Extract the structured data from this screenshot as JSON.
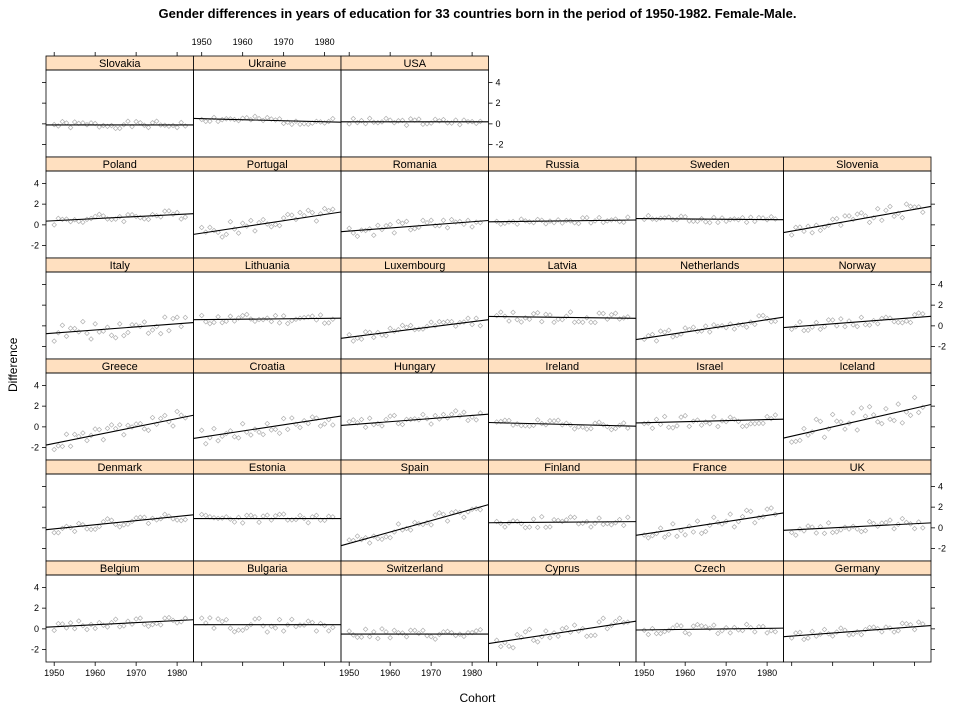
{
  "chart_data": {
    "type": "scatter",
    "title": "Gender differences in years of education for 33 countries born in the period of 1950-1982. Female-Male.",
    "xlabel": "Cohort",
    "ylabel": "Difference",
    "xlim": [
      1948,
      1984
    ],
    "ylim": [
      -3.2,
      5.2
    ],
    "x_ticks": [
      1950,
      1960,
      1970,
      1980
    ],
    "y_ticks": [
      -2,
      0,
      2,
      4
    ],
    "grid": false,
    "panel_strip_color": "#ffe0c0",
    "point_color": "#b0b0b0",
    "line_color": "#000000",
    "panels": [
      {
        "name": "Slovakia",
        "intercept": -0.1,
        "slope": 0.0,
        "spread": 0.35,
        "seed": 1
      },
      {
        "name": "Ukraine",
        "intercept": 0.5,
        "slope": -0.01,
        "spread": 0.35,
        "seed": 2
      },
      {
        "name": "USA",
        "intercept": 0.2,
        "slope": 0.0,
        "spread": 0.35,
        "seed": 3
      },
      {
        "name": "Poland",
        "intercept": 0.4,
        "slope": 0.02,
        "spread": 0.45,
        "seed": 4
      },
      {
        "name": "Portugal",
        "intercept": -0.8,
        "slope": 0.06,
        "spread": 0.7,
        "seed": 5
      },
      {
        "name": "Romania",
        "intercept": -0.6,
        "slope": 0.03,
        "spread": 0.6,
        "seed": 6
      },
      {
        "name": "Russia",
        "intercept": 0.3,
        "slope": 0.005,
        "spread": 0.3,
        "seed": 7
      },
      {
        "name": "Sweden",
        "intercept": 0.6,
        "slope": -0.003,
        "spread": 0.35,
        "seed": 8
      },
      {
        "name": "Slovenia",
        "intercept": -0.6,
        "slope": 0.07,
        "spread": 0.7,
        "seed": 9
      },
      {
        "name": "Italy",
        "intercept": -0.7,
        "slope": 0.03,
        "spread": 0.9,
        "seed": 10
      },
      {
        "name": "Lithuania",
        "intercept": 0.6,
        "slope": 0.004,
        "spread": 0.5,
        "seed": 11
      },
      {
        "name": "Luxembourg",
        "intercept": -1.1,
        "slope": 0.05,
        "spread": 0.5,
        "seed": 12
      },
      {
        "name": "Latvia",
        "intercept": 0.9,
        "slope": -0.005,
        "spread": 0.55,
        "seed": 13
      },
      {
        "name": "Netherlands",
        "intercept": -1.2,
        "slope": 0.06,
        "spread": 0.5,
        "seed": 14
      },
      {
        "name": "Norway",
        "intercept": -0.1,
        "slope": 0.03,
        "spread": 0.45,
        "seed": 15
      },
      {
        "name": "Greece",
        "intercept": -1.6,
        "slope": 0.08,
        "spread": 0.7,
        "seed": 16
      },
      {
        "name": "Croatia",
        "intercept": -1.0,
        "slope": 0.06,
        "spread": 0.8,
        "seed": 17
      },
      {
        "name": "Hungary",
        "intercept": 0.2,
        "slope": 0.03,
        "spread": 0.6,
        "seed": 18
      },
      {
        "name": "Ireland",
        "intercept": 0.4,
        "slope": -0.01,
        "spread": 0.4,
        "seed": 19
      },
      {
        "name": "Israel",
        "intercept": 0.4,
        "slope": 0.01,
        "spread": 0.6,
        "seed": 20
      },
      {
        "name": "Iceland",
        "intercept": -0.9,
        "slope": 0.09,
        "spread": 1.2,
        "seed": 21
      },
      {
        "name": "Denmark",
        "intercept": -0.1,
        "slope": 0.04,
        "spread": 0.45,
        "seed": 22
      },
      {
        "name": "Estonia",
        "intercept": 0.9,
        "slope": 0.0,
        "spread": 0.45,
        "seed": 23
      },
      {
        "name": "Spain",
        "intercept": -1.5,
        "slope": 0.11,
        "spread": 0.6,
        "seed": 24
      },
      {
        "name": "Finland",
        "intercept": 0.5,
        "slope": 0.003,
        "spread": 0.55,
        "seed": 25
      },
      {
        "name": "France",
        "intercept": -0.6,
        "slope": 0.06,
        "spread": 0.8,
        "seed": 26
      },
      {
        "name": "UK",
        "intercept": -0.2,
        "slope": 0.02,
        "spread": 0.55,
        "seed": 27
      },
      {
        "name": "Belgium",
        "intercept": 0.2,
        "slope": 0.02,
        "spread": 0.45,
        "seed": 28
      },
      {
        "name": "Bulgaria",
        "intercept": 0.4,
        "slope": 0.0,
        "spread": 0.7,
        "seed": 29
      },
      {
        "name": "Switzerland",
        "intercept": -0.5,
        "slope": 0.0,
        "spread": 0.5,
        "seed": 30
      },
      {
        "name": "Cyprus",
        "intercept": -1.3,
        "slope": 0.06,
        "spread": 0.8,
        "seed": 31
      },
      {
        "name": "Czech",
        "intercept": -0.1,
        "slope": 0.005,
        "spread": 0.45,
        "seed": 32
      },
      {
        "name": "Germany",
        "intercept": -0.7,
        "slope": 0.03,
        "spread": 0.45,
        "seed": 33
      }
    ]
  }
}
